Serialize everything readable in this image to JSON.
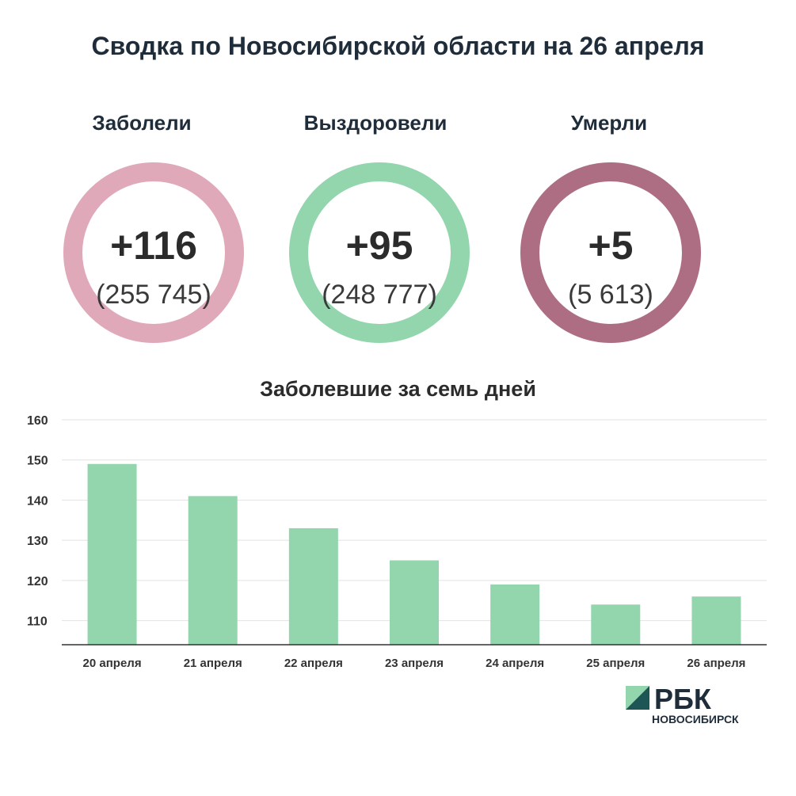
{
  "title": "Сводка по Новосибирской области на 26 апреля",
  "stats": [
    {
      "label": "Заболели",
      "delta": "+116",
      "total": "(255 745)",
      "color": "#e0a9b9"
    },
    {
      "label": "Выздоровели",
      "delta": "+95",
      "total": "(248 777)",
      "color": "#93d6ae"
    },
    {
      "label": "Умерли",
      "delta": "+5",
      "total": "(5 613)",
      "color": "#ad6e84"
    }
  ],
  "chart_data": {
    "type": "bar",
    "title": "Заболевшие за семь дней",
    "categories": [
      "20 апреля",
      "21 апреля",
      "22 апреля",
      "23 апреля",
      "24 апреля",
      "25 апреля",
      "26 апреля"
    ],
    "values": [
      149,
      141,
      133,
      125,
      119,
      114,
      116
    ],
    "yticks": [
      110,
      120,
      130,
      140,
      150,
      160
    ],
    "ylim": [
      104,
      160
    ],
    "grid": true,
    "bar_color": "#93d6ae"
  },
  "logo": {
    "brand": "РБК",
    "region": "НОВОСИБИРСК"
  }
}
